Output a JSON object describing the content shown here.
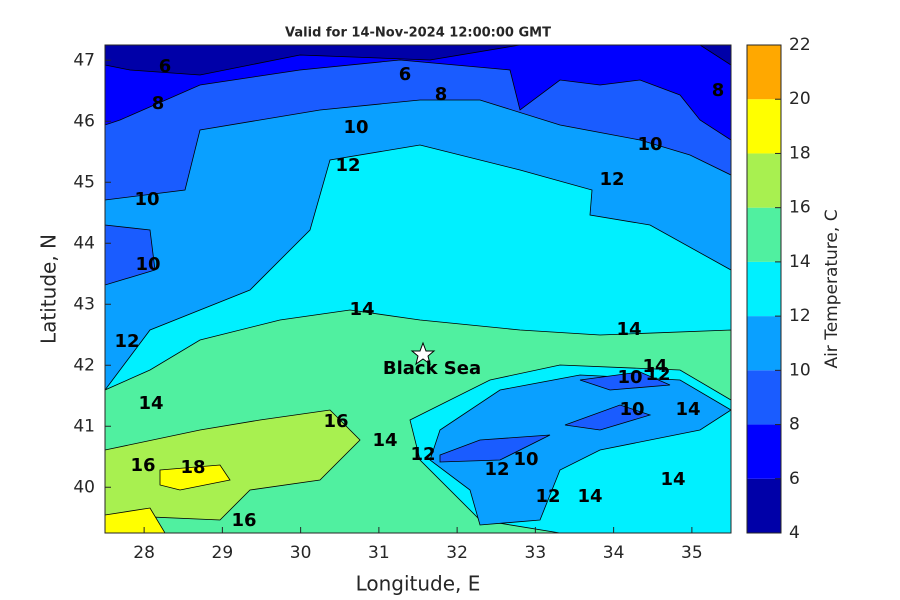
{
  "chart_data": {
    "type": "contourf",
    "title": "Valid for 14-Nov-2024 12:00:00 GMT",
    "xlabel": "Longitude, E",
    "ylabel": "Latitude, N",
    "xlim": [
      27.5,
      35.5
    ],
    "xticks": [
      28,
      29,
      30,
      31,
      32,
      33,
      34,
      35
    ],
    "ylim": [
      39.25,
      47.25
    ],
    "yticks": [
      40,
      41,
      42,
      43,
      44,
      45,
      46,
      47
    ],
    "colorbar_label": "Air Temperature, C",
    "colorbar_lim": [
      4,
      22
    ],
    "colorbar_ticks": [
      4,
      6,
      8,
      10,
      12,
      14,
      16,
      18,
      20,
      22
    ],
    "colors": [
      "#0000a8",
      "#0000ff",
      "#1a5cff",
      "#0aa0ff",
      "#00f0ff",
      "#50f0a0",
      "#a8f050",
      "#ffff00",
      "#ffa800"
    ],
    "contour_labels": [
      6,
      6,
      8,
      8,
      8,
      10,
      10,
      12,
      12,
      10,
      10,
      12,
      14,
      14,
      14,
      12,
      10,
      10,
      14,
      14,
      16,
      14,
      12,
      16,
      18,
      12,
      10,
      12,
      14,
      14,
      16
    ],
    "annotation": "Black Sea"
  }
}
